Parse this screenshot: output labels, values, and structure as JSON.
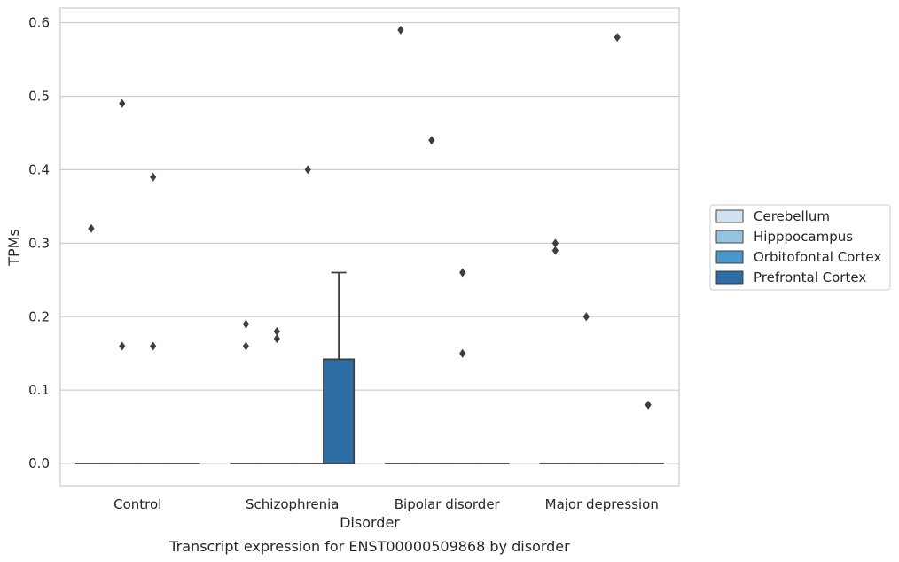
{
  "chart_data": {
    "type": "box",
    "xlabel": "Disorder",
    "ylabel": "TPMs",
    "caption": "Transcript expression for ENST00000509868 by disorder",
    "categories": [
      "Control",
      "Schizophrenia",
      "Bipolar disorder",
      "Major depression"
    ],
    "yticks": [
      "0.0",
      "0.1",
      "0.2",
      "0.3",
      "0.4",
      "0.5",
      "0.6"
    ],
    "ylim": [
      -0.03,
      0.62
    ],
    "grid": "horizontal",
    "legend_position": "right",
    "series": [
      {
        "name": "Cerebellum",
        "color": "#d0e1f2",
        "boxes": [
          {
            "q1": 0,
            "median": 0,
            "q3": 0,
            "whisker_low": 0,
            "whisker_high": 0,
            "outliers": [
              0.32
            ]
          },
          {
            "q1": 0,
            "median": 0,
            "q3": 0,
            "whisker_low": 0,
            "whisker_high": 0,
            "outliers": [
              0.19,
              0.16
            ]
          },
          {
            "q1": 0,
            "median": 0,
            "q3": 0,
            "whisker_low": 0,
            "whisker_high": 0,
            "outliers": [
              0.59
            ]
          },
          {
            "q1": 0,
            "median": 0,
            "q3": 0,
            "whisker_low": 0,
            "whisker_high": 0,
            "outliers": [
              0.3,
              0.29
            ]
          }
        ]
      },
      {
        "name": "Hipppocampus",
        "color": "#94c4df",
        "boxes": [
          {
            "q1": 0,
            "median": 0,
            "q3": 0,
            "whisker_low": 0,
            "whisker_high": 0,
            "outliers": [
              0.49,
              0.16
            ]
          },
          {
            "q1": 0,
            "median": 0,
            "q3": 0,
            "whisker_low": 0,
            "whisker_high": 0,
            "outliers": [
              0.18,
              0.17
            ]
          },
          {
            "q1": 0,
            "median": 0,
            "q3": 0,
            "whisker_low": 0,
            "whisker_high": 0,
            "outliers": [
              0.44
            ]
          },
          {
            "q1": 0,
            "median": 0,
            "q3": 0,
            "whisker_low": 0,
            "whisker_high": 0,
            "outliers": [
              0.2
            ]
          }
        ]
      },
      {
        "name": "Orbitofontal Cortex",
        "color": "#4a98c9",
        "boxes": [
          {
            "q1": 0,
            "median": 0,
            "q3": 0,
            "whisker_low": 0,
            "whisker_high": 0,
            "outliers": [
              0.39,
              0.16
            ]
          },
          {
            "q1": 0,
            "median": 0,
            "q3": 0,
            "whisker_low": 0,
            "whisker_high": 0,
            "outliers": [
              0.4
            ]
          },
          {
            "q1": 0,
            "median": 0,
            "q3": 0,
            "whisker_low": 0,
            "whisker_high": 0,
            "outliers": [
              0.26,
              0.15
            ]
          },
          {
            "q1": 0,
            "median": 0,
            "q3": 0,
            "whisker_low": 0,
            "whisker_high": 0,
            "outliers": [
              0.58
            ]
          }
        ]
      },
      {
        "name": "Prefrontal Cortex",
        "color": "#2e6ea6",
        "boxes": [
          {
            "q1": 0,
            "median": 0,
            "q3": 0,
            "whisker_low": 0,
            "whisker_high": 0,
            "outliers": []
          },
          {
            "q1": 0,
            "median": 0,
            "q3": 0.142,
            "whisker_low": 0,
            "whisker_high": 0.26,
            "outliers": []
          },
          {
            "q1": 0,
            "median": 0,
            "q3": 0,
            "whisker_low": 0,
            "whisker_high": 0,
            "outliers": []
          },
          {
            "q1": 0,
            "median": 0,
            "q3": 0,
            "whisker_low": 0,
            "whisker_high": 0,
            "outliers": [
              0.08
            ]
          }
        ]
      }
    ]
  }
}
